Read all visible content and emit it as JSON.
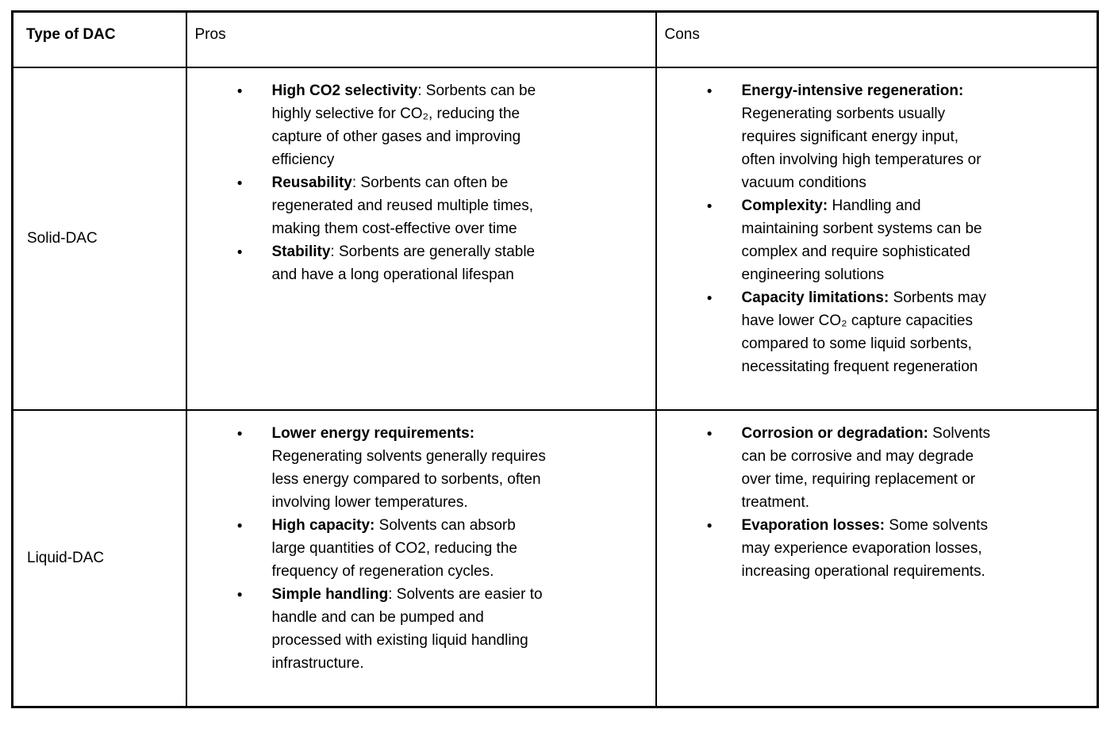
{
  "colors": {
    "text": "#000000",
    "border": "#000000",
    "background": "#ffffff"
  },
  "table": {
    "headers": [
      "Type of DAC",
      "Pros",
      "Cons"
    ],
    "rows": [
      {
        "type": "Solid-DAC",
        "pros": [
          {
            "bold": "High CO2 selectivity",
            "rest": ": Sorbents can be\nhighly selective for CO₂, reducing the\ncapture of other gases and improving\nefficiency"
          },
          {
            "bold": "Reusability",
            "rest": ": Sorbents can often be\nregenerated and reused multiple times,\nmaking them cost-effective over time"
          },
          {
            "bold": "Stability",
            "rest": ": Sorbents are generally stable\nand have a long operational lifespan"
          }
        ],
        "cons": [
          {
            "bold": "Energy-intensive regeneration:",
            "rest": "\nRegenerating sorbents usually\nrequires significant energy input,\noften involving high temperatures or\nvacuum conditions"
          },
          {
            "bold": "Complexity:",
            "rest": " Handling and\nmaintaining sorbent systems can be\ncomplex and require sophisticated\nengineering solutions"
          },
          {
            "bold": "Capacity limitations:",
            "rest": " Sorbents may\nhave lower CO₂ capture capacities\ncompared to some liquid sorbents,\nnecessitating frequent regeneration"
          }
        ]
      },
      {
        "type": "Liquid-DAC",
        "pros": [
          {
            "bold": "Lower energy requirements:",
            "rest": "\nRegenerating solvents generally requires\nless energy compared to sorbents, often\ninvolving lower temperatures."
          },
          {
            "bold": "High capacity:",
            "rest": " Solvents can absorb\nlarge quantities of CO2, reducing the\nfrequency of regeneration cycles."
          },
          {
            "bold": "Simple handling",
            "rest": ": Solvents are easier to\nhandle and can be pumped and\nprocessed with existing liquid handling\ninfrastructure."
          }
        ],
        "cons": [
          {
            "bold": "Corrosion or degradation:",
            "rest": " Solvents\ncan be corrosive and may degrade\nover time, requiring replacement or\ntreatment."
          },
          {
            "bold": "Evaporation losses:",
            "rest": " Some solvents\nmay experience evaporation losses,\nincreasing operational requirements."
          }
        ]
      }
    ]
  }
}
